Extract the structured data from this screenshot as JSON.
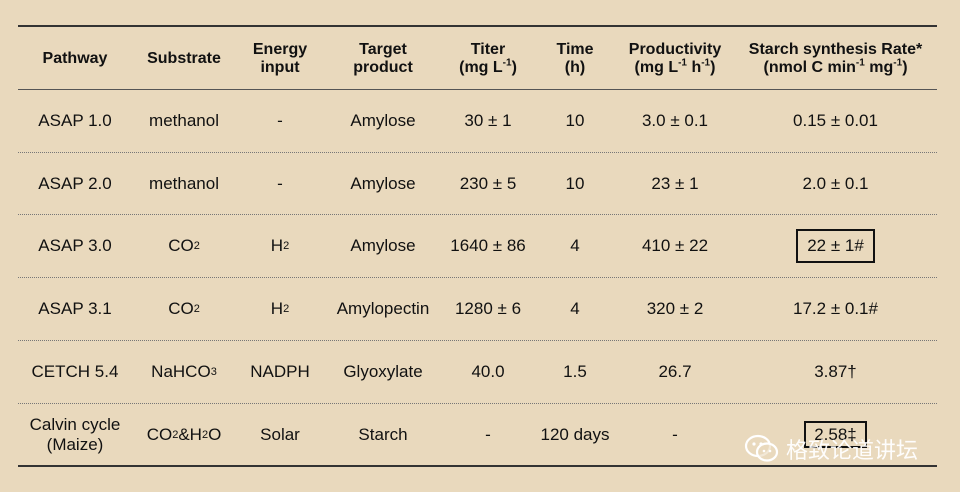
{
  "headers": {
    "pathway": "Pathway",
    "substrate": "Substrate",
    "energy_line1": "Energy",
    "energy_line2": "input",
    "target_line1": "Target",
    "target_line2": "product",
    "titer_line1": "Titer",
    "titer_line2a": "(mg L",
    "titer_line2sup": "-1",
    "titer_line2b": ")",
    "time_line1": "Time",
    "time_line2": "(h)",
    "prod_line1": "Productivity",
    "prod_line2a": "(mg L",
    "prod_line2sup1": "-1",
    "prod_line2b": " h",
    "prod_line2sup2": "-1",
    "prod_line2c": ")",
    "rate_line1": "Starch synthesis Rate*",
    "rate_line2a": "(nmol C min",
    "rate_line2sup1": "-1",
    "rate_line2b": " mg",
    "rate_line2sup2": "-1",
    "rate_line2c": ")"
  },
  "rows": [
    {
      "pathway": "ASAP 1.0",
      "substrate": "methanol",
      "energy": "-",
      "target": "Amylose",
      "titer": "30 ± 1",
      "time": "10",
      "productivity": "3.0 ± 0.1",
      "rate": "0.15 ± 0.01"
    },
    {
      "pathway": "ASAP 2.0",
      "substrate": "methanol",
      "energy": "-",
      "target": "Amylose",
      "titer": "230 ± 5",
      "time": "10",
      "productivity": "23 ± 1",
      "rate": "2.0 ± 0.1"
    },
    {
      "pathway": "ASAP 3.0",
      "substrate_main": "CO",
      "substrate_sub": "2",
      "energy_main": "H",
      "energy_sub": "2",
      "target": "Amylose",
      "titer": "1640 ± 86",
      "time": "4",
      "productivity": "410 ± 22",
      "rate": "22 ± 1#"
    },
    {
      "pathway": "ASAP 3.1",
      "substrate_main": "CO",
      "substrate_sub": "2",
      "energy_main": "H",
      "energy_sub": "2",
      "target": "Amylopectin",
      "titer": "1280 ± 6",
      "time": "4",
      "productivity": "320 ± 2",
      "rate": "17.2 ± 0.1#"
    },
    {
      "pathway": "CETCH 5.4",
      "substrate_main": "NaHCO",
      "substrate_sub": "3",
      "energy": "NADPH",
      "target": "Glyoxylate",
      "titer": "40.0",
      "time": "1.5",
      "productivity": "26.7",
      "rate": "3.87†"
    },
    {
      "pathway_line1": "Calvin cycle",
      "pathway_line2": "(Maize)",
      "substrate_a": "CO",
      "substrate_sub1": "2",
      "substrate_b": "&H",
      "substrate_sub2": "2",
      "substrate_c": "O",
      "energy": "Solar",
      "target": "Starch",
      "titer": "-",
      "time": "120 days",
      "productivity": "-",
      "rate": "2.58‡"
    }
  ],
  "watermark": {
    "text": "格致论道讲坛",
    "icon": "wechat-icon"
  }
}
